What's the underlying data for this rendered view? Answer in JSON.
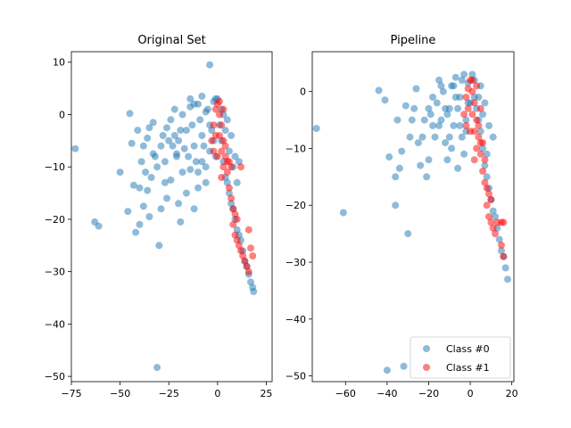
{
  "chart_data": [
    {
      "type": "scatter",
      "title": "Original Set",
      "xlim": [
        -75,
        28
      ],
      "ylim": [
        -51,
        12
      ],
      "xticks": [
        -75,
        -50,
        -25,
        0,
        25
      ],
      "yticks": [
        10,
        0,
        -10,
        -20,
        -30,
        -40,
        -50
      ],
      "xtick_labels": [
        "−75",
        "−50",
        "−25",
        "0",
        "25"
      ],
      "ytick_labels": [
        "10",
        "0",
        "−10",
        "−20",
        "−30",
        "−40",
        "−50"
      ],
      "series": [
        {
          "name": "Class #0",
          "color": "#1f77b4",
          "points": [
            [
              -73,
              -6.5
            ],
            [
              -63,
              -20.5
            ],
            [
              -61,
              -21.3
            ],
            [
              -50,
              -11
            ],
            [
              -46,
              -18.5
            ],
            [
              -45,
              0.2
            ],
            [
              -43,
              -13.5
            ],
            [
              -42,
              -22.5
            ],
            [
              -40,
              -14
            ],
            [
              -40,
              -21
            ],
            [
              -38,
              -17.5
            ],
            [
              -37,
              -11
            ],
            [
              -36,
              -14.5
            ],
            [
              -35,
              -19.5
            ],
            [
              -34,
              -12
            ],
            [
              -33,
              -1.5
            ],
            [
              -32,
              -8
            ],
            [
              -31,
              -48.3
            ],
            [
              -30,
              -25
            ],
            [
              -29,
              -18
            ],
            [
              -27,
              -9
            ],
            [
              -26,
              -16
            ],
            [
              -24,
              -12.5
            ],
            [
              -22,
              -4
            ],
            [
              -21,
              -7.5
            ],
            [
              -20,
              -17
            ],
            [
              -19,
              -20.5
            ],
            [
              -18,
              -11
            ],
            [
              -16,
              -15
            ],
            [
              -14,
              -10.5
            ],
            [
              -12,
              -18
            ],
            [
              -10,
              -14
            ],
            [
              -8,
              -9
            ],
            [
              -6,
              -13
            ],
            [
              -4,
              9.5
            ],
            [
              -28,
              -4
            ],
            [
              -26,
              -2.5
            ],
            [
              -24,
              -1
            ],
            [
              -22,
              1
            ],
            [
              -20,
              -5
            ],
            [
              -18,
              0
            ],
            [
              -16,
              -3
            ],
            [
              -14,
              1.5
            ],
            [
              -12,
              -6
            ],
            [
              -10,
              2
            ],
            [
              -8,
              -4
            ],
            [
              -6,
              0.5
            ],
            [
              -4,
              -7
            ],
            [
              -2,
              2.5
            ],
            [
              -15,
              -8
            ],
            [
              -13,
              -2
            ],
            [
              -11,
              -9
            ],
            [
              -9,
              -1
            ],
            [
              -7,
              -6
            ],
            [
              -5,
              1
            ],
            [
              -3,
              -3
            ],
            [
              -1,
              3
            ],
            [
              -17,
              -6.5
            ],
            [
              -19,
              -3
            ],
            [
              -21,
              -8
            ],
            [
              -23,
              -6
            ],
            [
              -25,
              -5
            ],
            [
              -14,
              3
            ],
            [
              -12,
              2
            ],
            [
              -10,
              -11
            ],
            [
              -8,
              3.5
            ],
            [
              -6,
              -10
            ],
            [
              -4,
              -2
            ],
            [
              -2,
              -5
            ],
            [
              0,
              3
            ],
            [
              -44,
              -5.5
            ],
            [
              -41,
              -3
            ],
            [
              -38,
              -6
            ],
            [
              -35,
              -2.5
            ],
            [
              -31,
              -10
            ],
            [
              -29,
              -6
            ],
            [
              -27,
              -13
            ],
            [
              -39,
              -9
            ],
            [
              -36,
              -4.5
            ],
            [
              -33,
              -7.5
            ],
            [
              1,
              -2
            ],
            [
              2,
              -5
            ],
            [
              3,
              -9
            ],
            [
              4,
              -12
            ],
            [
              5,
              -13
            ],
            [
              6,
              -15
            ],
            [
              7,
              -17
            ],
            [
              8,
              -18
            ],
            [
              9,
              -20
            ],
            [
              10,
              -22
            ],
            [
              11,
              -23
            ],
            [
              12,
              -24
            ],
            [
              13,
              -26
            ],
            [
              14,
              -28
            ],
            [
              15,
              -29
            ],
            [
              16,
              -30.5
            ],
            [
              17,
              -32
            ],
            [
              18,
              -33
            ],
            [
              18.5,
              -33.8
            ],
            [
              2,
              1
            ],
            [
              4,
              -3
            ],
            [
              6,
              -7
            ],
            [
              8,
              -10
            ],
            [
              10,
              -13
            ],
            [
              3,
              0
            ],
            [
              5,
              -1
            ],
            [
              7,
              -4
            ],
            [
              9,
              -8
            ],
            [
              11,
              -9
            ],
            [
              -1,
              -8
            ]
          ]
        },
        {
          "name": "Class #1",
          "color": "#ff0000",
          "points": [
            [
              0,
              2
            ],
            [
              1,
              0
            ],
            [
              2,
              -2
            ],
            [
              1,
              -4
            ],
            [
              3,
              -5
            ],
            [
              2,
              -7
            ],
            [
              4,
              -8
            ],
            [
              3,
              -10
            ],
            [
              5,
              -9
            ],
            [
              -2,
              -2
            ],
            [
              -1,
              -4
            ],
            [
              -3,
              -5
            ],
            [
              -2,
              -7
            ],
            [
              0,
              -8
            ],
            [
              4,
              -6
            ],
            [
              6,
              -9
            ],
            [
              5,
              -11
            ],
            [
              7,
              -10
            ],
            [
              12,
              -10
            ],
            [
              6,
              -14
            ],
            [
              7,
              -16
            ],
            [
              8,
              -18
            ],
            [
              9,
              -19
            ],
            [
              10,
              -20
            ],
            [
              8,
              -21
            ],
            [
              9,
              -23
            ],
            [
              10,
              -24
            ],
            [
              11,
              -25
            ],
            [
              12,
              -26
            ],
            [
              13,
              -27
            ],
            [
              14,
              -28
            ],
            [
              15,
              -29
            ],
            [
              16,
              -30
            ],
            [
              17,
              -25.5
            ],
            [
              18,
              -27
            ],
            [
              16,
              -22
            ],
            [
              3,
              1
            ],
            [
              1,
              2.5
            ],
            [
              -1,
              1
            ],
            [
              2,
              -12
            ]
          ]
        }
      ]
    },
    {
      "type": "scatter",
      "title": "Pipeline",
      "xlim": [
        -76,
        21
      ],
      "ylim": [
        -51,
        7
      ],
      "xticks": [
        -60,
        -40,
        -20,
        0,
        20
      ],
      "yticks": [
        0,
        -10,
        -20,
        -30,
        -40,
        -50
      ],
      "xtick_labels": [
        "−60",
        "−40",
        "−20",
        "0",
        "20"
      ],
      "ytick_labels": [
        "0",
        "−10",
        "−20",
        "−30",
        "−40",
        "−50"
      ],
      "legend": "lower-right",
      "series": [
        {
          "name": "Class #0",
          "color": "#1f77b4",
          "points": [
            [
              -74,
              -6.5
            ],
            [
              -61,
              -21.3
            ],
            [
              -44,
              0.2
            ],
            [
              -41,
              -1.5
            ],
            [
              -39,
              -11.5
            ],
            [
              -36,
              -15
            ],
            [
              -36,
              -20
            ],
            [
              -35,
              -5
            ],
            [
              -34,
              -13.5
            ],
            [
              -33,
              -10.5
            ],
            [
              -32,
              -48.3
            ],
            [
              -31,
              -2.5
            ],
            [
              -30,
              -25
            ],
            [
              -29,
              -8
            ],
            [
              -28,
              -5
            ],
            [
              -27,
              -3
            ],
            [
              -26,
              0.5
            ],
            [
              -24,
              -13
            ],
            [
              -23,
              -8
            ],
            [
              -22,
              -5
            ],
            [
              -21,
              -15
            ],
            [
              -20,
              -12
            ],
            [
              -19,
              -4
            ],
            [
              -18,
              -1
            ],
            [
              -17,
              -8
            ],
            [
              -16,
              -2
            ],
            [
              -15,
              2
            ],
            [
              -14,
              -5
            ],
            [
              -13,
              0
            ],
            [
              -12,
              -9
            ],
            [
              -11,
              -12
            ],
            [
              -10,
              -3
            ],
            [
              -9,
              1
            ],
            [
              -8,
              -6
            ],
            [
              -7,
              2.5
            ],
            [
              -6,
              -13.5
            ],
            [
              -5,
              -1
            ],
            [
              -4,
              -8
            ],
            [
              -3,
              3
            ],
            [
              -2,
              -5
            ],
            [
              -1,
              1.5
            ],
            [
              0,
              -2
            ],
            [
              1,
              3
            ],
            [
              -15,
              -6
            ],
            [
              -12,
              -3
            ],
            [
              -10,
              -8
            ],
            [
              -8,
              1
            ],
            [
              -6,
              -3
            ],
            [
              -4,
              2
            ],
            [
              -2,
              -7
            ],
            [
              -25,
              -9
            ],
            [
              -20,
              -3
            ],
            [
              -18,
              -6
            ],
            [
              -14,
              1
            ],
            [
              -11,
              -4
            ],
            [
              -9,
              -10
            ],
            [
              -7,
              -1
            ],
            [
              -5,
              -6
            ],
            [
              -3,
              -11
            ],
            [
              -1,
              -2
            ],
            [
              2,
              -1
            ],
            [
              3,
              -3
            ],
            [
              4,
              -5
            ],
            [
              5,
              -7
            ],
            [
              6,
              -10
            ],
            [
              7,
              -13
            ],
            [
              8,
              -15
            ],
            [
              9,
              -17
            ],
            [
              10,
              -19
            ],
            [
              11,
              -21
            ],
            [
              12,
              -22
            ],
            [
              13,
              -24
            ],
            [
              14,
              -26
            ],
            [
              15,
              -28
            ],
            [
              16,
              -29
            ],
            [
              17,
              -31
            ],
            [
              18,
              -33
            ],
            [
              5,
              1
            ],
            [
              7,
              -2
            ],
            [
              9,
              -6
            ],
            [
              11,
              -8
            ],
            [
              6,
              -4
            ],
            [
              8,
              -11
            ],
            [
              4,
              -1
            ],
            [
              2,
              2
            ],
            [
              -40,
              -49
            ]
          ]
        },
        {
          "name": "Class #1",
          "color": "#ff0000",
          "points": [
            [
              0,
              2
            ],
            [
              1,
              0
            ],
            [
              2,
              -2
            ],
            [
              1,
              -4
            ],
            [
              3,
              -5
            ],
            [
              2,
              -7
            ],
            [
              4,
              -8
            ],
            [
              3,
              -10
            ],
            [
              5,
              -9
            ],
            [
              -2,
              -1
            ],
            [
              -1,
              -3
            ],
            [
              -3,
              -4
            ],
            [
              -2,
              -6
            ],
            [
              0,
              -7
            ],
            [
              4,
              -6
            ],
            [
              6,
              -9
            ],
            [
              5,
              -11
            ],
            [
              7,
              -12
            ],
            [
              6,
              -14
            ],
            [
              7,
              -16
            ],
            [
              8,
              -17
            ],
            [
              9,
              -18
            ],
            [
              10,
              -19
            ],
            [
              8,
              -20
            ],
            [
              9,
              -22
            ],
            [
              10,
              -23
            ],
            [
              11,
              -24
            ],
            [
              12,
              -25
            ],
            [
              13,
              -23
            ],
            [
              15,
              -23
            ],
            [
              16,
              -23
            ],
            [
              15,
              -27
            ],
            [
              16,
              -29
            ],
            [
              3,
              1
            ],
            [
              1,
              2
            ],
            [
              -1,
              0.5
            ],
            [
              2,
              -12
            ],
            [
              5,
              -3
            ]
          ]
        }
      ]
    }
  ]
}
